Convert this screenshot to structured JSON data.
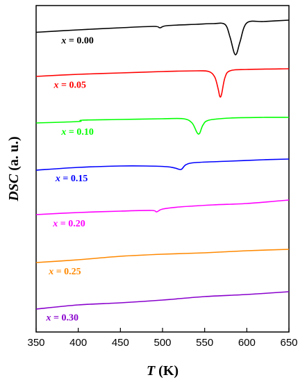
{
  "chart_data": {
    "type": "line",
    "xlabel": "T (K)",
    "ylabel": "DSC (a. u.)",
    "xlim": [
      350,
      650
    ],
    "xticks": [
      350,
      400,
      450,
      500,
      550,
      600,
      650
    ],
    "y_ticks_shown": false,
    "grid": false,
    "series": [
      {
        "name": "x = 0.00",
        "color": "#000000",
        "points": [
          [
            350,
            38.5
          ],
          [
            400,
            35
          ],
          [
            450,
            32
          ],
          [
            490,
            30
          ],
          [
            497,
            32
          ],
          [
            505,
            29
          ],
          [
            540,
            27
          ],
          [
            560,
            26
          ],
          [
            574,
            27
          ],
          [
            580,
            45
          ],
          [
            585,
            68
          ],
          [
            588,
            69
          ],
          [
            592,
            52
          ],
          [
            600,
            25
          ],
          [
            620,
            23
          ],
          [
            650,
            21
          ]
        ]
      },
      {
        "name": "x = 0.05",
        "color": "#ff0000",
        "points": [
          [
            350,
            102
          ],
          [
            400,
            99
          ],
          [
            450,
            97
          ],
          [
            500,
            95
          ],
          [
            540,
            94
          ],
          [
            555,
            95
          ],
          [
            562,
            103
          ],
          [
            566,
            120
          ],
          [
            568,
            131
          ],
          [
            570,
            128
          ],
          [
            574,
            104
          ],
          [
            580,
            94
          ],
          [
            600,
            92
          ],
          [
            650,
            91
          ]
        ]
      },
      {
        "name": "x = 0.10",
        "color": "#00ff00",
        "points": [
          [
            350,
            169
          ],
          [
            400,
            167
          ],
          [
            405,
            165
          ],
          [
            450,
            164
          ],
          [
            500,
            163
          ],
          [
            525,
            163
          ],
          [
            535,
            169
          ],
          [
            541,
            183
          ],
          [
            544,
            184
          ],
          [
            548,
            172
          ],
          [
            555,
            165
          ],
          [
            580,
            162
          ],
          [
            620,
            161
          ],
          [
            650,
            161
          ]
        ]
      },
      {
        "name": "x = 0.15",
        "color": "#0000ff",
        "points": [
          [
            350,
            237
          ],
          [
            400,
            233
          ],
          [
            450,
            231
          ],
          [
            480,
            231
          ],
          [
            505,
            232
          ],
          [
            515,
            234
          ],
          [
            522,
            236
          ],
          [
            528,
            229
          ],
          [
            540,
            226
          ],
          [
            580,
            224
          ],
          [
            620,
            222
          ],
          [
            650,
            221
          ]
        ]
      },
      {
        "name": "x = 0.20",
        "color": "#ff00ff",
        "points": [
          [
            350,
            301
          ],
          [
            400,
            298
          ],
          [
            450,
            296
          ],
          [
            487,
            295
          ],
          [
            493,
            297
          ],
          [
            500,
            293
          ],
          [
            520,
            290
          ],
          [
            560,
            287
          ],
          [
            600,
            285
          ],
          [
            650,
            280
          ]
        ]
      },
      {
        "name": "x = 0.25",
        "color": "#ff8800",
        "points": [
          [
            350,
            370
          ],
          [
            400,
            366
          ],
          [
            450,
            361
          ],
          [
            500,
            358
          ],
          [
            550,
            356
          ],
          [
            600,
            353
          ],
          [
            650,
            351
          ]
        ]
      },
      {
        "name": "x = 0.30",
        "color": "#8800cc",
        "points": [
          [
            350,
            437
          ],
          [
            400,
            431
          ],
          [
            450,
            428
          ],
          [
            500,
            424
          ],
          [
            550,
            419
          ],
          [
            600,
            416
          ],
          [
            650,
            412
          ]
        ]
      }
    ],
    "labels": [
      {
        "text": "x = 0.00",
        "color": "#000000",
        "at_T": 380
      },
      {
        "text": "x = 0.05",
        "color": "#ff0000",
        "at_T": 371
      },
      {
        "text": "x = 0.10",
        "color": "#00ff00",
        "at_T": 380
      },
      {
        "text": "x = 0.15",
        "color": "#0000ff",
        "at_T": 373
      },
      {
        "text": "x = 0.20",
        "color": "#ff00ff",
        "at_T": 370
      },
      {
        "text": "x = 0.25",
        "color": "#ff8800",
        "at_T": 365
      },
      {
        "text": "x = 0.30",
        "color": "#8800cc",
        "at_T": 362
      }
    ]
  }
}
